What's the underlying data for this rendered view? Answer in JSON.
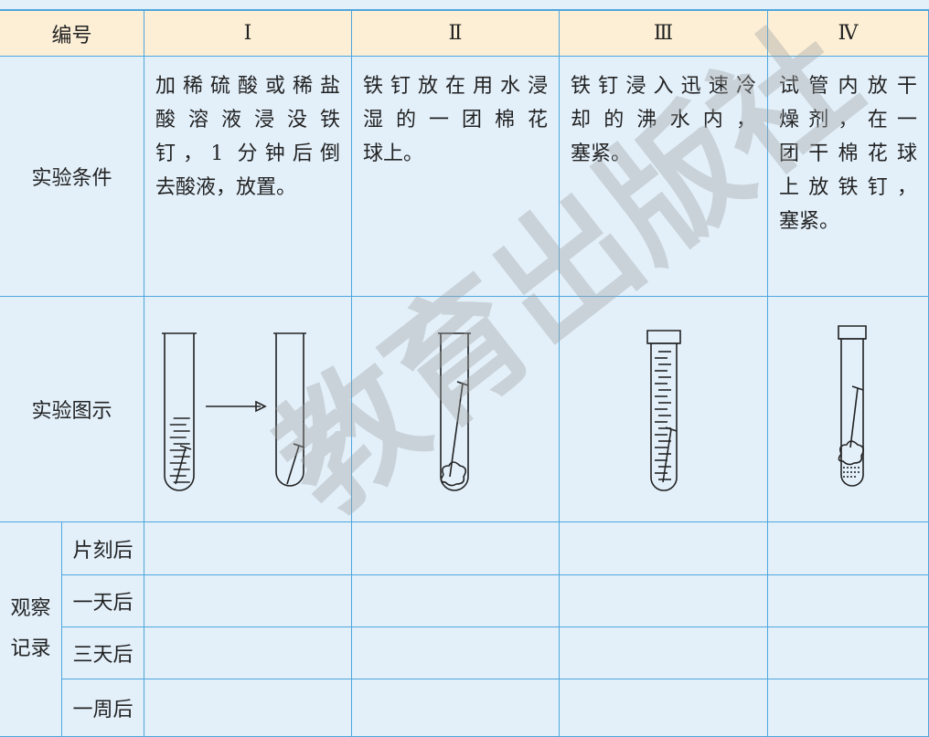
{
  "header": {
    "label": "编号",
    "columns": [
      "Ⅰ",
      "Ⅱ",
      "Ⅲ",
      "Ⅳ"
    ]
  },
  "conditions": {
    "label": "实验条件",
    "cells": [
      [
        "加稀硫酸或稀盐",
        "酸溶液浸没铁",
        "钉，1 分钟后倒",
        "去酸液，放置。"
      ],
      [
        "铁钉放在用水浸",
        "湿的一团棉花",
        "球上。"
      ],
      [
        "铁钉浸入迅速冷",
        "却的沸水内，",
        "塞紧。"
      ],
      [
        "试管内放干",
        "燥剂，在一",
        "团干棉花球",
        "上放铁钉，",
        "塞紧。"
      ]
    ]
  },
  "figures": {
    "label": "实验图示"
  },
  "observation": {
    "label": [
      "观察",
      "记录"
    ],
    "rows": [
      "片刻后",
      "一天后",
      "三天后",
      "一周后"
    ]
  },
  "watermark": "教育出版社"
}
